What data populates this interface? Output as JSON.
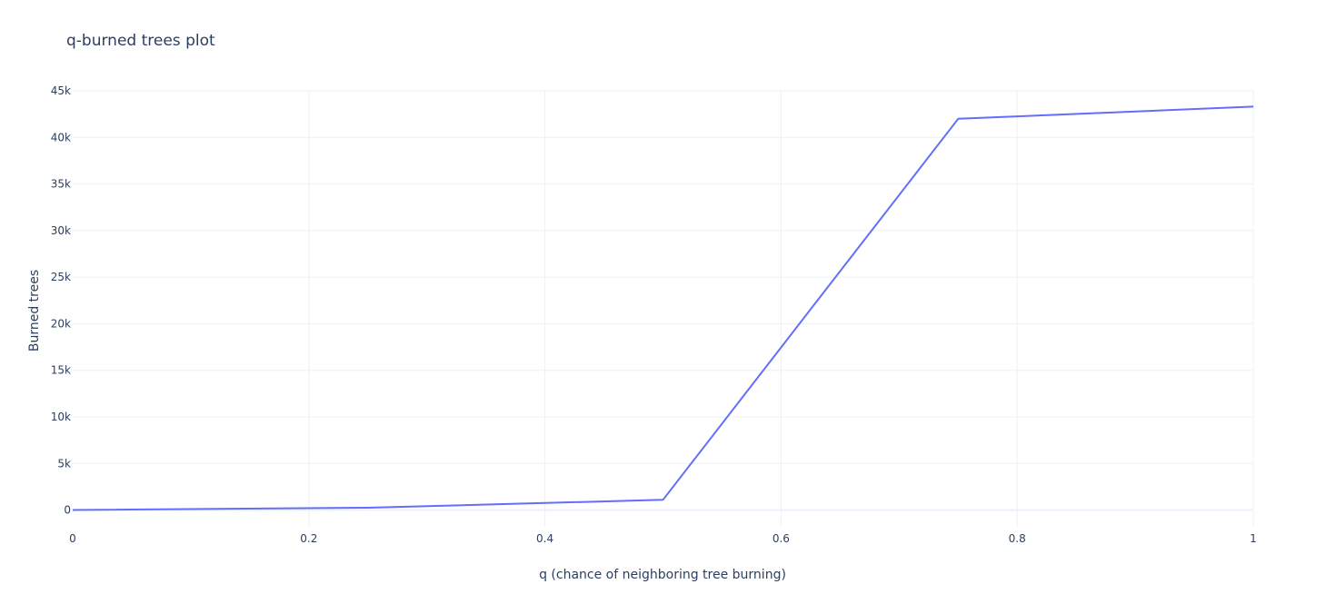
{
  "chart_data": {
    "type": "line",
    "title": "q-burned trees plot",
    "xlabel": "q (chance of neighboring tree burning)",
    "ylabel": "Burned trees",
    "xlim": [
      0,
      1
    ],
    "ylim": [
      -1800,
      45000
    ],
    "x_ticks": [
      0,
      0.2,
      0.4,
      0.6,
      0.8,
      1
    ],
    "x_tick_labels": [
      "0",
      "0.2",
      "0.4",
      "0.6",
      "0.8",
      "1"
    ],
    "y_ticks": [
      0,
      5000,
      10000,
      15000,
      20000,
      25000,
      30000,
      35000,
      40000,
      45000
    ],
    "y_tick_labels": [
      "0",
      "5k",
      "10k",
      "15k",
      "20k",
      "25k",
      "30k",
      "35k",
      "40k",
      "45k"
    ],
    "grid": true,
    "legend": "none",
    "series": [
      {
        "color": "#636efa",
        "x": [
          0,
          0.25,
          0.5,
          0.75,
          1
        ],
        "y": [
          0,
          250,
          1100,
          42000,
          43300
        ]
      }
    ]
  }
}
